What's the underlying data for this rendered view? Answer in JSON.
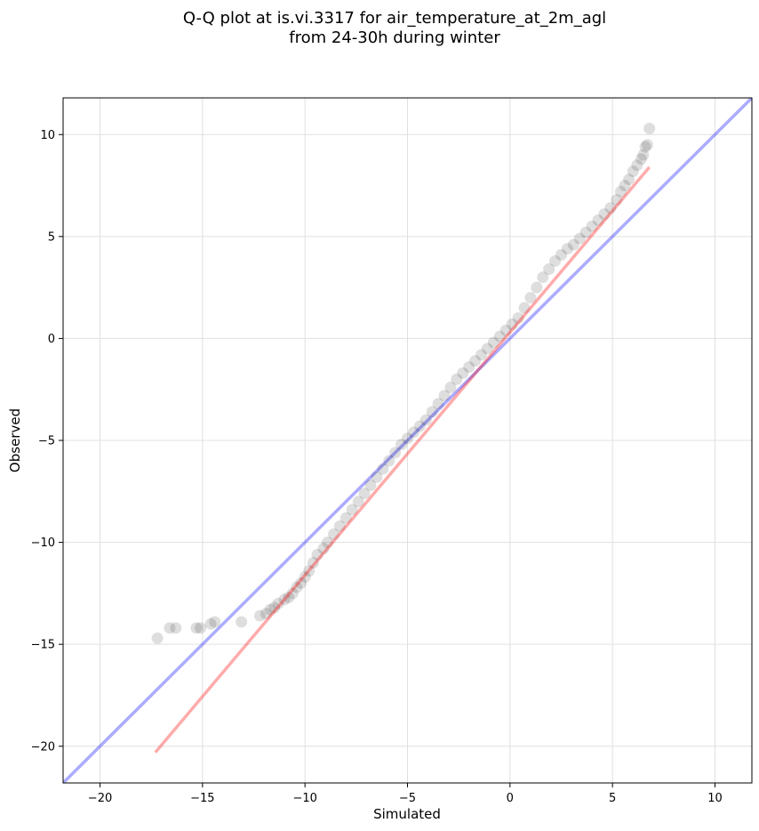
{
  "chart_data": {
    "type": "scatter",
    "title_lines": [
      "Q-Q plot at is.vi.3317 for air_temperature_at_2m_agl",
      "from 24-30h during winter"
    ],
    "xlabel": "Simulated",
    "ylabel": "Observed",
    "xlim": [
      -21.8,
      11.8
    ],
    "ylim": [
      -21.8,
      11.8
    ],
    "xticks": [
      -20,
      -15,
      -10,
      -5,
      0,
      5,
      10
    ],
    "yticks": [
      -20,
      -15,
      -10,
      -5,
      0,
      5,
      10
    ],
    "grid": true,
    "colors": {
      "points": "#000000",
      "reference_line": "#0000ff",
      "fit_line": "#ff0000",
      "grid": "#e0e0e0"
    },
    "reference_line": {
      "x": [
        -21.8,
        11.8
      ],
      "y": [
        -21.8,
        11.8
      ]
    },
    "fit_line": {
      "x": [
        -17.3,
        6.8
      ],
      "y": [
        -20.3,
        8.4
      ]
    },
    "points": {
      "x": [
        -17.2,
        -16.6,
        -16.3,
        -15.3,
        -15.1,
        -14.6,
        -14.4,
        -13.1,
        -12.2,
        -11.9,
        -11.7,
        -11.5,
        -11.3,
        -11.0,
        -10.8,
        -10.6,
        -10.4,
        -10.2,
        -10.0,
        -9.8,
        -9.6,
        -9.4,
        -9.1,
        -8.9,
        -8.6,
        -8.3,
        -8.0,
        -7.7,
        -7.4,
        -7.1,
        -6.8,
        -6.5,
        -6.2,
        -5.9,
        -5.6,
        -5.3,
        -5.0,
        -4.7,
        -4.4,
        -4.1,
        -3.8,
        -3.5,
        -3.2,
        -2.9,
        -2.6,
        -2.3,
        -2.0,
        -1.7,
        -1.4,
        -1.1,
        -0.8,
        -0.5,
        -0.2,
        0.1,
        0.4,
        0.7,
        1.0,
        1.3,
        1.6,
        1.9,
        2.2,
        2.5,
        2.8,
        3.1,
        3.4,
        3.7,
        4.0,
        4.3,
        4.6,
        4.9,
        5.2,
        5.4,
        5.6,
        5.8,
        6.0,
        6.2,
        6.4,
        6.5,
        6.6,
        6.7,
        6.8
      ],
      "y": [
        -14.7,
        -14.2,
        -14.2,
        -14.2,
        -14.2,
        -14.0,
        -13.9,
        -13.9,
        -13.6,
        -13.5,
        -13.3,
        -13.2,
        -13.0,
        -12.8,
        -12.7,
        -12.5,
        -12.2,
        -12.0,
        -11.7,
        -11.4,
        -11.0,
        -10.6,
        -10.3,
        -10.0,
        -9.6,
        -9.2,
        -8.8,
        -8.4,
        -8.0,
        -7.6,
        -7.2,
        -6.8,
        -6.4,
        -6.0,
        -5.6,
        -5.2,
        -4.9,
        -4.6,
        -4.3,
        -4.0,
        -3.6,
        -3.2,
        -2.8,
        -2.4,
        -2.0,
        -1.7,
        -1.4,
        -1.1,
        -0.8,
        -0.5,
        -0.2,
        0.1,
        0.4,
        0.7,
        1.0,
        1.5,
        2.0,
        2.5,
        3.0,
        3.4,
        3.8,
        4.1,
        4.4,
        4.6,
        4.9,
        5.2,
        5.5,
        5.8,
        6.1,
        6.4,
        6.8,
        7.2,
        7.5,
        7.8,
        8.2,
        8.5,
        8.8,
        9.0,
        9.4,
        9.5,
        10.3
      ]
    }
  }
}
